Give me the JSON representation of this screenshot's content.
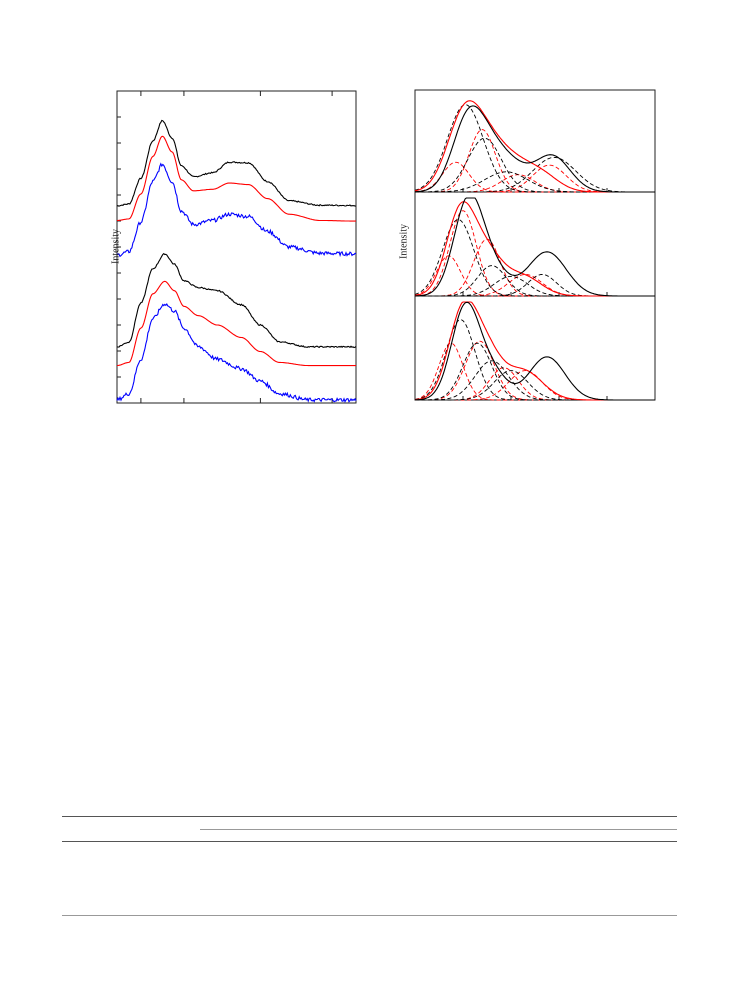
{
  "figure": {
    "left_panel": {
      "ylabel": "Intensity",
      "chart_data": {
        "type": "line",
        "xlabel": "",
        "ylabel": "Intensity",
        "grid": false,
        "xlim": [
          0,
          1
        ],
        "ylim": [
          0,
          1
        ],
        "series": [
          {
            "color": "#000000",
            "noise": 0.002,
            "values": [
              [
                0.0,
                0.632
              ],
              [
                0.05,
                0.638
              ],
              [
                0.1,
                0.72
              ],
              [
                0.15,
                0.84
              ],
              [
                0.19,
                0.905
              ],
              [
                0.23,
                0.85
              ],
              [
                0.27,
                0.76
              ],
              [
                0.32,
                0.725
              ],
              [
                0.4,
                0.738
              ],
              [
                0.47,
                0.772
              ],
              [
                0.55,
                0.77
              ],
              [
                0.63,
                0.71
              ],
              [
                0.72,
                0.648
              ],
              [
                0.85,
                0.634
              ],
              [
                1.0,
                0.633
              ]
            ]
          },
          {
            "color": "#ff0000",
            "noise": 0.0,
            "values": [
              [
                0.0,
                0.585
              ],
              [
                0.05,
                0.59
              ],
              [
                0.1,
                0.67
              ],
              [
                0.15,
                0.79
              ],
              [
                0.19,
                0.855
              ],
              [
                0.23,
                0.805
              ],
              [
                0.27,
                0.715
              ],
              [
                0.32,
                0.68
              ],
              [
                0.4,
                0.685
              ],
              [
                0.47,
                0.705
              ],
              [
                0.55,
                0.7
              ],
              [
                0.63,
                0.655
              ],
              [
                0.72,
                0.605
              ],
              [
                0.85,
                0.585
              ],
              [
                1.0,
                0.583
              ]
            ]
          },
          {
            "color": "#0000ff",
            "noise": 0.006,
            "values": [
              [
                0.0,
                0.474
              ],
              [
                0.05,
                0.485
              ],
              [
                0.1,
                0.58
              ],
              [
                0.15,
                0.71
              ],
              [
                0.19,
                0.765
              ],
              [
                0.23,
                0.71
              ],
              [
                0.27,
                0.615
              ],
              [
                0.32,
                0.572
              ],
              [
                0.4,
                0.585
              ],
              [
                0.47,
                0.605
              ],
              [
                0.55,
                0.598
              ],
              [
                0.63,
                0.55
              ],
              [
                0.72,
                0.5
              ],
              [
                0.85,
                0.48
              ],
              [
                1.0,
                0.478
              ]
            ]
          },
          {
            "color": "#000000",
            "noise": 0.002,
            "values": [
              [
                0.0,
                0.18
              ],
              [
                0.05,
                0.195
              ],
              [
                0.1,
                0.32
              ],
              [
                0.15,
                0.43
              ],
              [
                0.2,
                0.478
              ],
              [
                0.24,
                0.445
              ],
              [
                0.28,
                0.392
              ],
              [
                0.34,
                0.37
              ],
              [
                0.42,
                0.36
              ],
              [
                0.52,
                0.315
              ],
              [
                0.6,
                0.25
              ],
              [
                0.68,
                0.196
              ],
              [
                0.8,
                0.18
              ],
              [
                1.0,
                0.18
              ]
            ]
          },
          {
            "color": "#ff0000",
            "noise": 0.0,
            "values": [
              [
                0.0,
                0.12
              ],
              [
                0.05,
                0.13
              ],
              [
                0.1,
                0.24
              ],
              [
                0.15,
                0.35
              ],
              [
                0.2,
                0.39
              ],
              [
                0.24,
                0.36
              ],
              [
                0.28,
                0.31
              ],
              [
                0.34,
                0.28
              ],
              [
                0.42,
                0.25
              ],
              [
                0.52,
                0.21
              ],
              [
                0.6,
                0.165
              ],
              [
                0.68,
                0.13
              ],
              [
                0.8,
                0.12
              ],
              [
                1.0,
                0.12
              ]
            ]
          },
          {
            "color": "#0000ff",
            "noise": 0.006,
            "values": [
              [
                0.0,
                0.01
              ],
              [
                0.05,
                0.03
              ],
              [
                0.1,
                0.14
              ],
              [
                0.15,
                0.27
              ],
              [
                0.2,
                0.318
              ],
              [
                0.24,
                0.295
              ],
              [
                0.28,
                0.24
              ],
              [
                0.34,
                0.18
              ],
              [
                0.42,
                0.14
              ],
              [
                0.52,
                0.11
              ],
              [
                0.6,
                0.07
              ],
              [
                0.68,
                0.03
              ],
              [
                0.8,
                0.01
              ],
              [
                1.0,
                0.01
              ]
            ]
          }
        ]
      }
    },
    "right_panel": {
      "ylabel": "Intensity",
      "chart_data": {
        "type": "line",
        "xlabel": "",
        "ylabel": "Intensity",
        "grid": false,
        "xlim": [
          0,
          1
        ],
        "ylim": [
          0,
          1
        ],
        "subplots": [
          {
            "components": [
              {
                "color": "#ff0000",
                "dash": true,
                "center": 0.17,
                "width": 0.055,
                "height": 0.31
              },
              {
                "color": "#ff0000",
                "dash": true,
                "center": 0.28,
                "width": 0.055,
                "height": 0.65
              },
              {
                "color": "#ff0000",
                "dash": true,
                "center": 0.43,
                "width": 0.07,
                "height": 0.18
              },
              {
                "color": "#ff0000",
                "dash": true,
                "center": 0.56,
                "width": 0.07,
                "height": 0.28
              },
              {
                "color": "#000000",
                "dash": true,
                "center": 0.21,
                "width": 0.075,
                "height": 0.91
              },
              {
                "color": "#000000",
                "dash": true,
                "center": 0.29,
                "width": 0.07,
                "height": 0.56
              },
              {
                "color": "#000000",
                "dash": true,
                "center": 0.38,
                "width": 0.09,
                "height": 0.21
              },
              {
                "color": "#000000",
                "dash": true,
                "center": 0.58,
                "width": 0.09,
                "height": 0.36
              }
            ],
            "envelopes": [
              {
                "color": "#ff0000",
                "terms": [
                  [
                    0.2,
                    0.07,
                    0.66
                  ],
                  [
                    0.3,
                    0.085,
                    0.48
                  ],
                  [
                    0.44,
                    0.08,
                    0.2
                  ],
                  [
                    0.54,
                    0.07,
                    0.12
                  ]
                ]
              },
              {
                "color": "#000000",
                "terms": [
                  [
                    0.22,
                    0.065,
                    0.72
                  ],
                  [
                    0.32,
                    0.07,
                    0.4
                  ],
                  [
                    0.42,
                    0.06,
                    0.15
                  ],
                  [
                    0.57,
                    0.075,
                    0.38
                  ]
                ]
              }
            ]
          },
          {
            "components": [
              {
                "color": "#ff0000",
                "dash": true,
                "center": 0.14,
                "width": 0.05,
                "height": 0.41
              },
              {
                "color": "#ff0000",
                "dash": true,
                "center": 0.2,
                "width": 0.055,
                "height": 0.87
              },
              {
                "color": "#ff0000",
                "dash": true,
                "center": 0.3,
                "width": 0.055,
                "height": 0.58
              },
              {
                "color": "#ff0000",
                "dash": true,
                "center": 0.46,
                "width": 0.07,
                "height": 0.22
              },
              {
                "color": "#000000",
                "dash": true,
                "center": 0.18,
                "width": 0.065,
                "height": 0.78
              },
              {
                "color": "#000000",
                "dash": true,
                "center": 0.32,
                "width": 0.06,
                "height": 0.31
              },
              {
                "color": "#000000",
                "dash": true,
                "center": 0.4,
                "width": 0.07,
                "height": 0.2
              },
              {
                "color": "#000000",
                "dash": true,
                "center": 0.53,
                "width": 0.06,
                "height": 0.22
              }
            ],
            "envelopes": [
              {
                "color": "#ff0000",
                "terms": [
                  [
                    0.19,
                    0.06,
                    0.85
                  ],
                  [
                    0.3,
                    0.065,
                    0.4
                  ],
                  [
                    0.45,
                    0.075,
                    0.2
                  ]
                ]
              },
              {
                "color": "#000000",
                "terms": [
                  [
                    0.22,
                    0.06,
                    0.9
                  ],
                  [
                    0.31,
                    0.07,
                    0.3
                  ],
                  [
                    0.55,
                    0.08,
                    0.45
                  ]
                ]
              }
            ]
          },
          {
            "components": [
              {
                "color": "#ff0000",
                "dash": true,
                "center": 0.15,
                "width": 0.05,
                "height": 0.58
              },
              {
                "color": "#ff0000",
                "dash": true,
                "center": 0.27,
                "width": 0.06,
                "height": 0.6
              },
              {
                "color": "#ff0000",
                "dash": true,
                "center": 0.37,
                "width": 0.06,
                "height": 0.33
              },
              {
                "color": "#ff0000",
                "dash": true,
                "center": 0.46,
                "width": 0.07,
                "height": 0.3
              },
              {
                "color": "#000000",
                "dash": true,
                "center": 0.19,
                "width": 0.06,
                "height": 0.82
              },
              {
                "color": "#000000",
                "dash": true,
                "center": 0.26,
                "width": 0.06,
                "height": 0.58
              },
              {
                "color": "#000000",
                "dash": true,
                "center": 0.32,
                "width": 0.07,
                "height": 0.4
              },
              {
                "color": "#000000",
                "dash": true,
                "center": 0.4,
                "width": 0.07,
                "height": 0.3
              }
            ],
            "envelopes": [
              {
                "color": "#ff0000",
                "terms": [
                  [
                    0.2,
                    0.06,
                    0.9
                  ],
                  [
                    0.3,
                    0.06,
                    0.42
                  ],
                  [
                    0.45,
                    0.08,
                    0.3
                  ]
                ]
              },
              {
                "color": "#000000",
                "terms": [
                  [
                    0.21,
                    0.058,
                    0.94
                  ],
                  [
                    0.32,
                    0.06,
                    0.28
                  ],
                  [
                    0.55,
                    0.075,
                    0.44
                  ]
                ]
              }
            ]
          }
        ]
      }
    }
  },
  "table": {
    "columns": [
      "",
      "",
      "",
      "",
      ""
    ],
    "rows": []
  }
}
